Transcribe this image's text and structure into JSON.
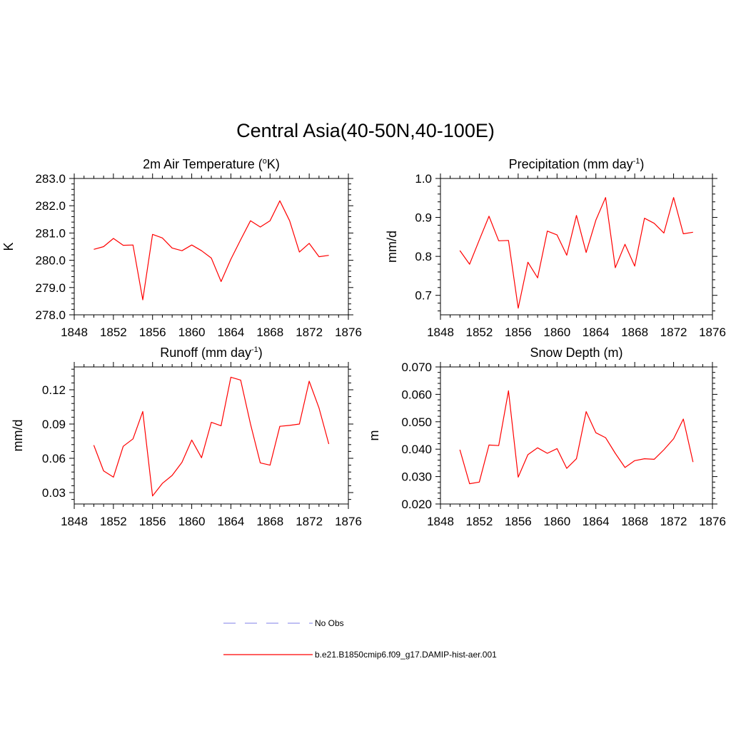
{
  "main_title": "Central Asia(40-50N,40-100E)",
  "legend": [
    {
      "label": "No Obs",
      "color": "#9999ee",
      "style": "dashed"
    },
    {
      "label": "b.e21.B1850cmip6.f09_g17.DAMIP-hist-aer.001",
      "color": "#ff0000",
      "style": "solid"
    }
  ],
  "chart_data": [
    {
      "type": "line",
      "title": "2m Air Temperature (oK)",
      "title_parts": {
        "pre": "2m Air Temperature (",
        "sup": "o",
        "post": "K)"
      },
      "ylabel": "K",
      "xlim": [
        1848,
        1876
      ],
      "ylim": [
        278.0,
        283.0
      ],
      "xticks": [
        "1848",
        "1852",
        "1856",
        "1860",
        "1864",
        "1868",
        "1872",
        "1876"
      ],
      "yticks": [
        "278.0",
        "279.0",
        "280.0",
        "281.0",
        "282.0",
        "283.0"
      ],
      "series": [
        {
          "color": "#ff0000",
          "x": [
            1850,
            1851,
            1852,
            1853,
            1854,
            1855,
            1856,
            1857,
            1858,
            1859,
            1860,
            1861,
            1862,
            1863,
            1864,
            1865,
            1866,
            1867,
            1868,
            1869,
            1870,
            1871,
            1872,
            1873,
            1874
          ],
          "y": [
            280.4,
            280.5,
            280.8,
            280.55,
            280.56,
            278.55,
            280.95,
            280.82,
            280.45,
            280.35,
            280.56,
            280.35,
            280.08,
            279.22,
            280.04,
            280.75,
            281.45,
            281.22,
            281.45,
            282.18,
            281.45,
            280.3,
            280.62,
            280.13,
            280.18
          ]
        }
      ]
    },
    {
      "type": "line",
      "title": "Precipitation (mm day-1)",
      "title_parts": {
        "pre": "Precipitation (mm day",
        "sup": "-1",
        "post": ")"
      },
      "ylabel": "mm/d",
      "xlim": [
        1848,
        1876
      ],
      "ylim": [
        0.65,
        1.0
      ],
      "xticks": [
        "1848",
        "1852",
        "1856",
        "1860",
        "1864",
        "1868",
        "1872",
        "1876"
      ],
      "yticks": [
        "0.7",
        "0.8",
        "0.9",
        "1.0"
      ],
      "series": [
        {
          "color": "#ff0000",
          "x": [
            1850,
            1851,
            1852,
            1853,
            1854,
            1855,
            1856,
            1857,
            1858,
            1859,
            1860,
            1861,
            1862,
            1863,
            1864,
            1865,
            1866,
            1867,
            1868,
            1869,
            1870,
            1871,
            1872,
            1873,
            1874
          ],
          "y": [
            0.815,
            0.78,
            0.842,
            0.903,
            0.84,
            0.841,
            0.667,
            0.785,
            0.745,
            0.865,
            0.855,
            0.803,
            0.905,
            0.81,
            0.893,
            0.951,
            0.771,
            0.831,
            0.775,
            0.898,
            0.885,
            0.86,
            0.951,
            0.858,
            0.862
          ]
        }
      ]
    },
    {
      "type": "line",
      "title": "Runoff (mm day-1)",
      "title_parts": {
        "pre": "Runoff (mm day",
        "sup": "-1",
        "post": ")"
      },
      "ylabel": "mm/d",
      "xlim": [
        1848,
        1876
      ],
      "ylim": [
        0.02,
        0.14
      ],
      "xticks": [
        "1848",
        "1852",
        "1856",
        "1860",
        "1864",
        "1868",
        "1872",
        "1876"
      ],
      "yticks": [
        "0.03",
        "0.06",
        "0.09",
        "0.12"
      ],
      "series": [
        {
          "color": "#ff0000",
          "x": [
            1850,
            1851,
            1852,
            1853,
            1854,
            1855,
            1856,
            1857,
            1858,
            1859,
            1860,
            1861,
            1862,
            1863,
            1864,
            1865,
            1866,
            1867,
            1868,
            1869,
            1870,
            1871,
            1872,
            1873,
            1874
          ],
          "y": [
            0.0715,
            0.049,
            0.0435,
            0.0705,
            0.077,
            0.101,
            0.027,
            0.038,
            0.045,
            0.0565,
            0.076,
            0.0605,
            0.0915,
            0.0885,
            0.131,
            0.1285,
            0.09,
            0.056,
            0.054,
            0.088,
            0.0888,
            0.09,
            0.1275,
            0.104,
            0.0725
          ]
        }
      ]
    },
    {
      "type": "line",
      "title": "Snow Depth (m)",
      "title_parts": {
        "pre": "Snow Depth (m)",
        "sup": "",
        "post": ""
      },
      "ylabel": "m",
      "xlim": [
        1848,
        1876
      ],
      "ylim": [
        0.02,
        0.07
      ],
      "xticks": [
        "1848",
        "1852",
        "1856",
        "1860",
        "1864",
        "1868",
        "1872",
        "1876"
      ],
      "yticks": [
        "0.020",
        "0.030",
        "0.040",
        "0.050",
        "0.060",
        "0.070"
      ],
      "series": [
        {
          "color": "#ff0000",
          "x": [
            1850,
            1851,
            1852,
            1853,
            1854,
            1855,
            1856,
            1857,
            1858,
            1859,
            1860,
            1861,
            1862,
            1863,
            1864,
            1865,
            1866,
            1867,
            1868,
            1869,
            1870,
            1871,
            1872,
            1873,
            1874
          ],
          "y": [
            0.0398,
            0.0274,
            0.028,
            0.0415,
            0.0413,
            0.0613,
            0.0298,
            0.038,
            0.0405,
            0.0385,
            0.0402,
            0.033,
            0.0365,
            0.0537,
            0.046,
            0.0442,
            0.0385,
            0.0333,
            0.0358,
            0.0365,
            0.0363,
            0.0398,
            0.0438,
            0.051,
            0.0353
          ]
        }
      ]
    }
  ]
}
